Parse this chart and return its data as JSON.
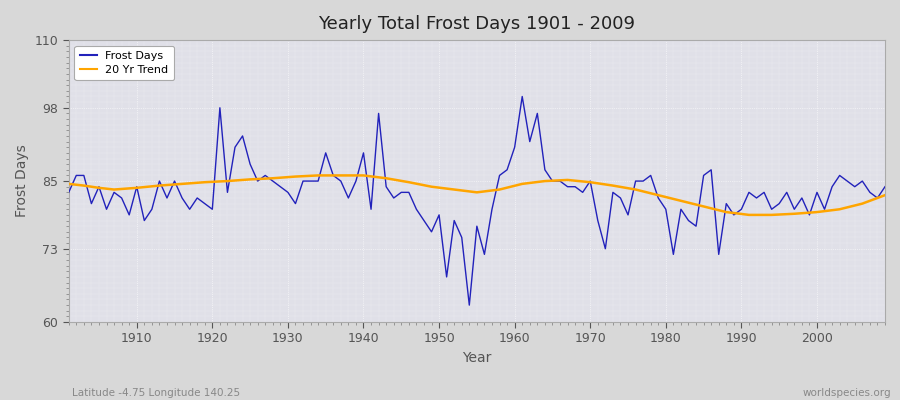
{
  "title": "Yearly Total Frost Days 1901 - 2009",
  "xlabel": "Year",
  "ylabel": "Frost Days",
  "xlim": [
    1901,
    2009
  ],
  "ylim": [
    60,
    110
  ],
  "yticks": [
    60,
    73,
    85,
    98,
    110
  ],
  "xticks": [
    1910,
    1920,
    1930,
    1940,
    1950,
    1960,
    1970,
    1980,
    1990,
    2000
  ],
  "bg_color": "#d8d8d8",
  "plot_bg_color": "#e0e0e8",
  "grid_color": "#ffffff",
  "line_color": "#2222bb",
  "trend_color": "#ffa500",
  "legend_labels": [
    "Frost Days",
    "20 Yr Trend"
  ],
  "subtitle_left": "Latitude -4.75 Longitude 140.25",
  "subtitle_right": "worldspecies.org",
  "frost_days": [
    83,
    86,
    86,
    81,
    84,
    80,
    83,
    82,
    79,
    84,
    78,
    80,
    85,
    82,
    85,
    82,
    80,
    82,
    81,
    80,
    98,
    83,
    91,
    93,
    88,
    85,
    86,
    85,
    84,
    83,
    81,
    85,
    85,
    85,
    90,
    86,
    85,
    82,
    85,
    90,
    80,
    97,
    84,
    82,
    83,
    83,
    80,
    78,
    76,
    79,
    68,
    78,
    75,
    63,
    77,
    72,
    80,
    86,
    87,
    91,
    100,
    92,
    97,
    87,
    85,
    85,
    84,
    84,
    83,
    85,
    78,
    73,
    83,
    82,
    79,
    85,
    85,
    86,
    82,
    80,
    72,
    80,
    78,
    77,
    86,
    87,
    72,
    81,
    79,
    80,
    83,
    82,
    83,
    80,
    81,
    83,
    80,
    82,
    79,
    83,
    80,
    84,
    86,
    85,
    84,
    85,
    83,
    82,
    84
  ],
  "trend_years": [
    1901,
    1903,
    1905,
    1907,
    1910,
    1913,
    1916,
    1919,
    1922,
    1925,
    1928,
    1931,
    1934,
    1937,
    1940,
    1943,
    1946,
    1949,
    1952,
    1955,
    1958,
    1961,
    1964,
    1967,
    1970,
    1973,
    1976,
    1979,
    1982,
    1985,
    1988,
    1991,
    1994,
    1997,
    2000,
    2003,
    2006,
    2009
  ],
  "trend_values": [
    84.5,
    84.2,
    83.8,
    83.5,
    83.8,
    84.2,
    84.5,
    84.8,
    85.0,
    85.3,
    85.5,
    85.8,
    86.0,
    86.0,
    86.0,
    85.5,
    84.8,
    84.0,
    83.5,
    83.0,
    83.5,
    84.5,
    85.0,
    85.2,
    84.8,
    84.2,
    83.5,
    82.5,
    81.5,
    80.5,
    79.5,
    79.0,
    79.0,
    79.2,
    79.5,
    80.0,
    81.0,
    82.5
  ]
}
